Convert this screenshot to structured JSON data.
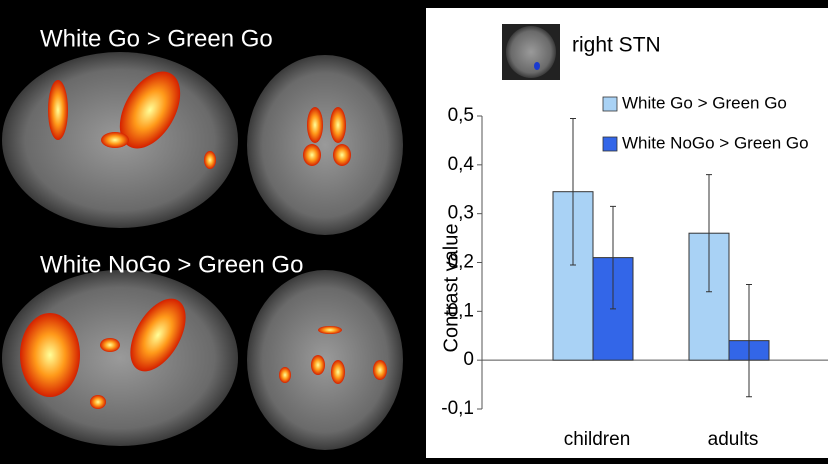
{
  "panels": {
    "top_label": "White Go > Green Go",
    "bottom_label": "White NoGo > Green Go"
  },
  "chart_data": {
    "type": "bar",
    "title": "right STN",
    "ylabel": "Contrast value",
    "categories": [
      "children",
      "adults"
    ],
    "series": [
      {
        "name": "White Go > Green Go",
        "color": "#a9d2f5",
        "values": [
          0.345,
          0.26
        ],
        "errors": [
          0.15,
          0.12
        ]
      },
      {
        "name": "White NoGo > Green Go",
        "color": "#3366e8",
        "values": [
          0.21,
          0.04
        ],
        "errors": [
          0.105,
          0.115
        ]
      }
    ],
    "ylim": [
      -0.1,
      0.5
    ],
    "yticks": [
      {
        "value": -0.1,
        "label": "-0,1"
      },
      0,
      {
        "value": 0.1,
        "label": "0,1"
      },
      {
        "value": 0.2,
        "label": "0,2"
      },
      {
        "value": 0.3,
        "label": "0,3"
      },
      {
        "value": 0.4,
        "label": "0,4"
      },
      {
        "value": 0.5,
        "label": "0,5"
      }
    ],
    "grid": false
  }
}
